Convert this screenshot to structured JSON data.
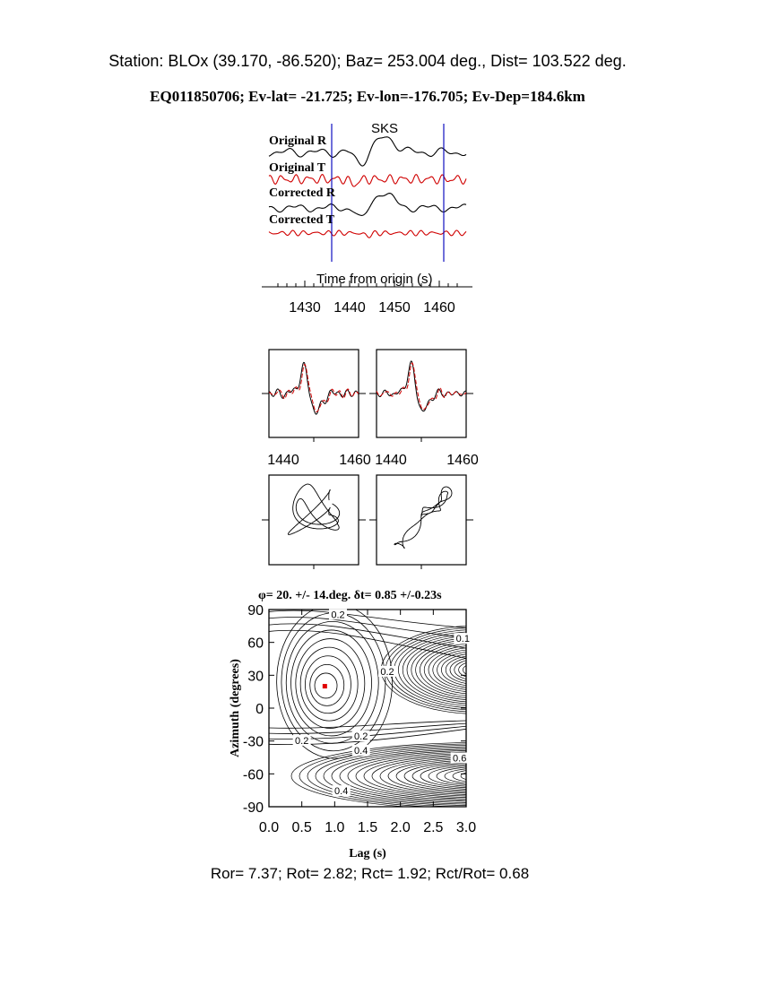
{
  "header": {
    "station_line": "Station: BLOx (39.170,  -86.520); Baz=  253.004 deg., Dist=  103.522 deg.",
    "event_line": "EQ011850706; Ev-lat= -21.725; Ev-lon=-176.705; Ev-Dep=184.6km"
  },
  "footer": {
    "stats_line": "Ror= 7.37; Rot= 2.82; Rct= 1.92; Rct/Rot= 0.68"
  },
  "colors": {
    "radial_trace": "#000000",
    "transverse_trace": "#d00000",
    "window_marker": "#1010c0",
    "best_fit_marker": "#e00000"
  },
  "chart_data": [
    {
      "type": "line",
      "panel": "seismograms",
      "phase_label": "SKS",
      "xlabel": "Time from origin (s)",
      "xlim": [
        1422,
        1466
      ],
      "x_ticks": [
        "1430",
        "1440",
        "1450",
        "1460"
      ],
      "window": [
        1436,
        1461
      ],
      "series": [
        {
          "name": "Original R",
          "color": "radial"
        },
        {
          "name": "Original T",
          "color": "transverse"
        },
        {
          "name": "Corrected R",
          "color": "radial"
        },
        {
          "name": "Corrected T",
          "color": "transverse"
        }
      ]
    },
    {
      "type": "line",
      "panel": "waveform-overlays",
      "x_ticks_left": [
        "1440",
        "1460"
      ],
      "x_ticks_right": [
        "1440",
        "1460"
      ],
      "xlim": [
        1436,
        1461
      ]
    },
    {
      "type": "line",
      "panel": "particle-motion",
      "count": 2
    },
    {
      "type": "contour",
      "panel": "energy-grid",
      "title": "φ= 20. +/- 14.deg. δt= 0.85 +/-0.23s",
      "xlabel": "Lag (s)",
      "ylabel": "Azimuth (degrees)",
      "xlim": [
        0,
        3
      ],
      "ylim": [
        -90,
        90
      ],
      "x_ticks": [
        "0.0",
        "0.5",
        "1.0",
        "1.5",
        "2.0",
        "2.5",
        "3.0"
      ],
      "y_ticks": [
        "90",
        "60",
        "30",
        "0",
        "-30",
        "-60",
        "-90"
      ],
      "best_fit": {
        "lag": 0.85,
        "azimuth": 20
      },
      "contour_labels": [
        {
          "text": "0.2",
          "lag": 1.05,
          "azimuth": 84
        },
        {
          "text": "0.1",
          "lag": 2.95,
          "azimuth": 62
        },
        {
          "text": "0.2",
          "lag": 1.8,
          "azimuth": 32
        },
        {
          "text": "0.2",
          "lag": 0.5,
          "azimuth": -31
        },
        {
          "text": "0.2",
          "lag": 1.4,
          "azimuth": -27
        },
        {
          "text": "0.4",
          "lag": 1.4,
          "azimuth": -40
        },
        {
          "text": "0.6",
          "lag": 2.9,
          "azimuth": -47
        },
        {
          "text": "0.4",
          "lag": 1.1,
          "azimuth": -77
        }
      ]
    }
  ]
}
